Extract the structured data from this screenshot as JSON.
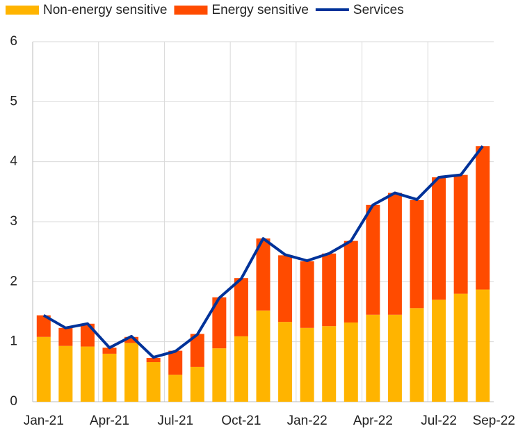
{
  "chart_data": {
    "type": "stacked_bar_line",
    "categories": [
      "Jan-21",
      null,
      null,
      "Apr-21",
      null,
      null,
      "Jul-21",
      null,
      null,
      "Oct-21",
      null,
      null,
      "Jan-22",
      null,
      null,
      "Apr-22",
      null,
      null,
      "Jul-22",
      null,
      "Sep-22"
    ],
    "series": [
      {
        "name": "Non-energy sensitive",
        "color": "#ffb400",
        "kind": "bar",
        "values": [
          1.08,
          0.93,
          0.92,
          0.8,
          0.98,
          0.66,
          0.45,
          0.58,
          0.89,
          1.09,
          1.52,
          1.33,
          1.23,
          1.26,
          1.32,
          1.45,
          1.45,
          1.56,
          1.7,
          1.8,
          1.87
        ]
      },
      {
        "name": "Energy sensitive",
        "color": "#ff4b00",
        "kind": "bar",
        "values": [
          0.36,
          0.3,
          0.38,
          0.1,
          0.1,
          0.07,
          0.4,
          0.55,
          0.85,
          0.97,
          1.2,
          1.11,
          1.11,
          1.21,
          1.36,
          1.83,
          2.03,
          1.8,
          2.04,
          1.98,
          2.39
        ]
      },
      {
        "name": "Services",
        "color": "#003299",
        "kind": "line",
        "values": [
          1.44,
          1.23,
          1.3,
          0.9,
          1.09,
          0.74,
          0.84,
          1.12,
          1.73,
          2.05,
          2.72,
          2.45,
          2.35,
          2.47,
          2.68,
          3.28,
          3.48,
          3.37,
          3.74,
          3.78,
          4.26
        ]
      }
    ],
    "ylim": [
      0,
      6
    ],
    "yticks": [
      0,
      1,
      2,
      3,
      4,
      5,
      6
    ],
    "grid": true
  }
}
